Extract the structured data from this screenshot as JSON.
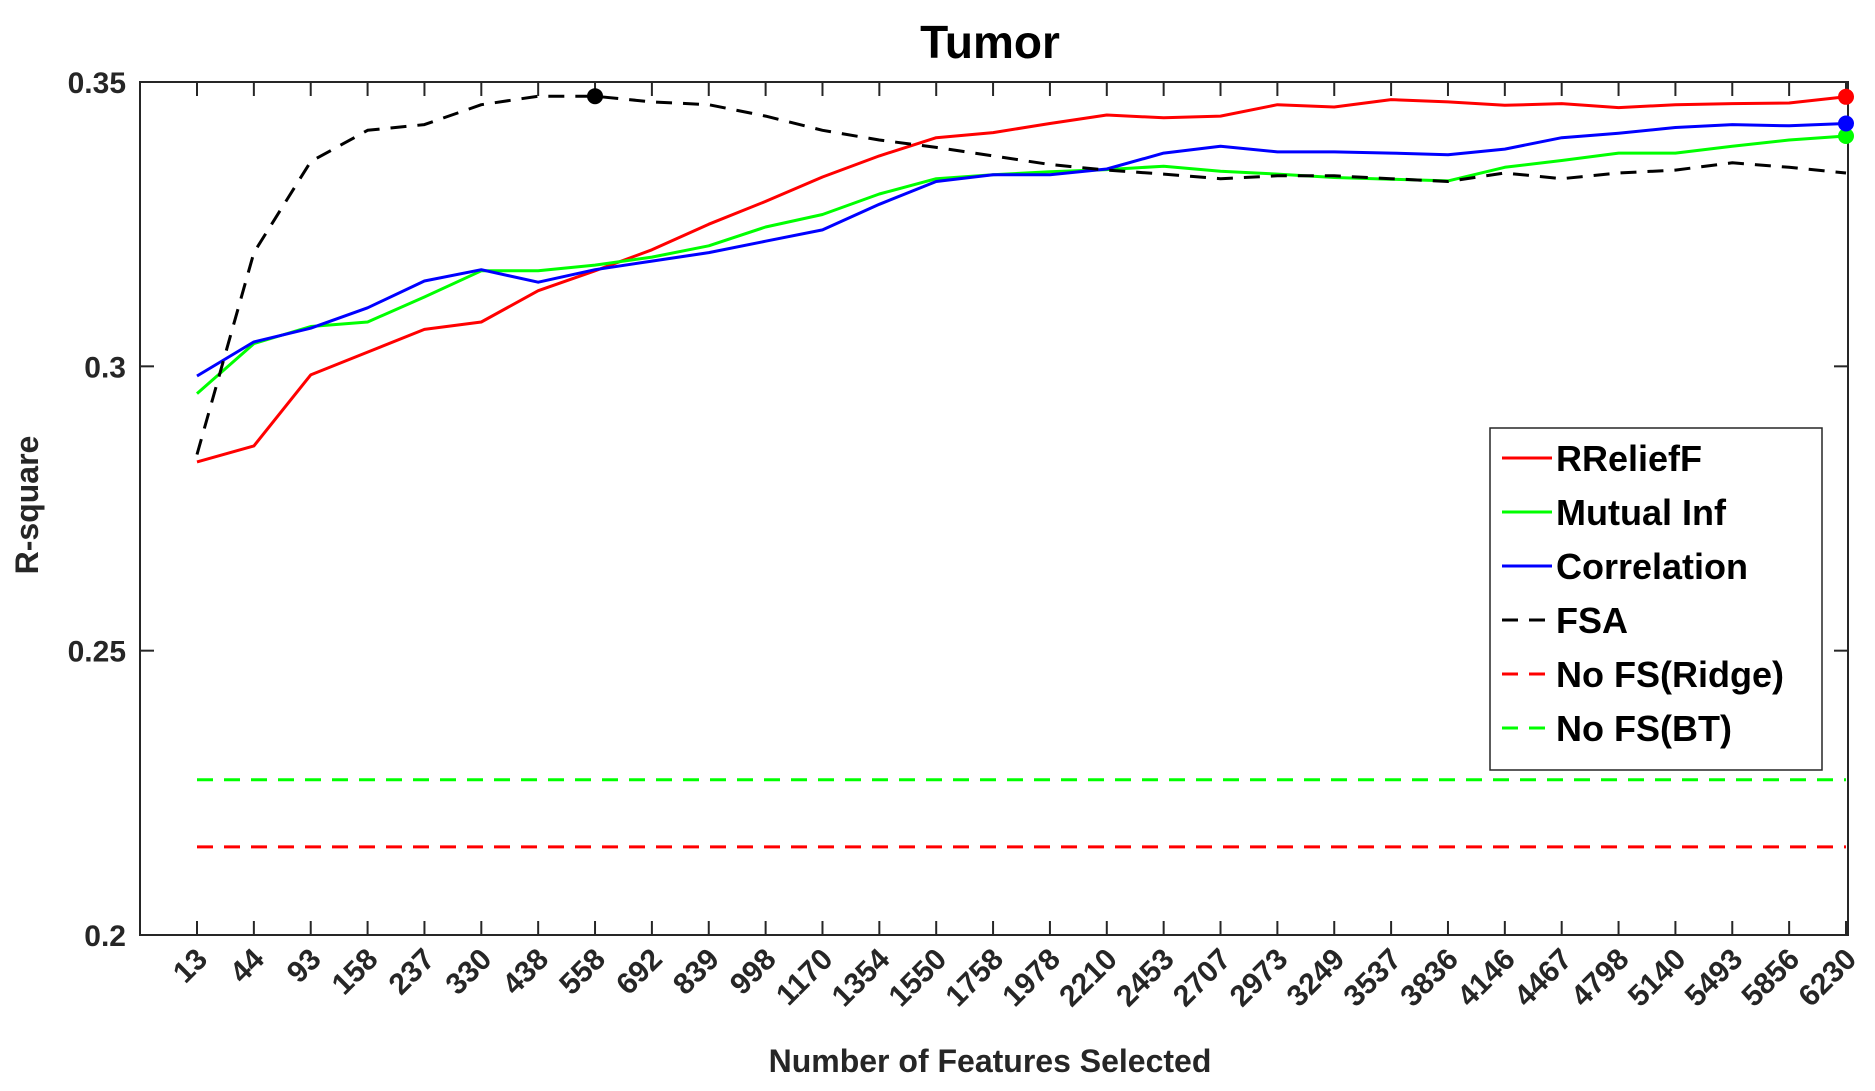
{
  "chart_data": {
    "type": "line",
    "title": "Tumor",
    "xlabel": "Number of Features Selected",
    "ylabel": "R-square",
    "categories": [
      "13",
      "44",
      "93",
      "158",
      "237",
      "330",
      "438",
      "558",
      "692",
      "839",
      "998",
      "1170",
      "1354",
      "1550",
      "1758",
      "1978",
      "2210",
      "2453",
      "2707",
      "2973",
      "3249",
      "3537",
      "3836",
      "4146",
      "4467",
      "4798",
      "5140",
      "5493",
      "5856",
      "6230"
    ],
    "ylim": [
      0.2,
      0.35
    ],
    "yticks": [
      0.2,
      0.25,
      0.3,
      0.35
    ],
    "ytick_labels": [
      "0.2",
      "0.25",
      "0.3",
      "0.35"
    ],
    "grid": false,
    "legend_position": "right",
    "series": [
      {
        "name": "RReliefF",
        "color": "#ff0000",
        "dash": "solid",
        "values": [
          0.2832,
          0.286,
          0.2985,
          0.3025,
          0.3065,
          0.3078,
          0.3133,
          0.3168,
          0.3205,
          0.325,
          0.329,
          0.3333,
          0.337,
          0.3402,
          0.3411,
          0.3427,
          0.3442,
          0.3437,
          0.344,
          0.346,
          0.3456,
          0.3469,
          0.3465,
          0.3459,
          0.3462,
          0.3455,
          0.346,
          0.3462,
          0.3463,
          0.3474
        ],
        "marker": {
          "index": 29,
          "value": 0.3474
        }
      },
      {
        "name": "Mutual Inf",
        "color": "#00ff00",
        "dash": "solid",
        "values": [
          0.2952,
          0.304,
          0.307,
          0.3078,
          0.3122,
          0.3168,
          0.3168,
          0.3178,
          0.3192,
          0.3212,
          0.3245,
          0.3267,
          0.3303,
          0.333,
          0.3337,
          0.3342,
          0.3346,
          0.3352,
          0.3343,
          0.3338,
          0.3332,
          0.3329,
          0.3326,
          0.335,
          0.3362,
          0.3375,
          0.3375,
          0.3387,
          0.3398,
          0.3405
        ],
        "marker": {
          "index": 29,
          "value": 0.3405
        }
      },
      {
        "name": "Correlation",
        "color": "#0000ff",
        "dash": "solid",
        "values": [
          0.2983,
          0.3043,
          0.3067,
          0.3103,
          0.315,
          0.317,
          0.3148,
          0.317,
          0.3185,
          0.32,
          0.322,
          0.324,
          0.3285,
          0.3325,
          0.3337,
          0.3337,
          0.3347,
          0.3375,
          0.3387,
          0.3377,
          0.3377,
          0.3375,
          0.3372,
          0.3382,
          0.3402,
          0.341,
          0.342,
          0.3425,
          0.3423,
          0.3427
        ],
        "marker": {
          "index": 29,
          "value": 0.3427
        }
      },
      {
        "name": "FSA",
        "color": "#000000",
        "dash": "dashed",
        "values": [
          0.2845,
          0.32,
          0.336,
          0.3415,
          0.3425,
          0.346,
          0.3475,
          0.3475,
          0.3465,
          0.346,
          0.344,
          0.3415,
          0.3398,
          0.3385,
          0.337,
          0.3355,
          0.3345,
          0.3338,
          0.333,
          0.3335,
          0.3335,
          0.333,
          0.3325,
          0.334,
          0.333,
          0.334,
          0.3345,
          0.3358,
          0.335,
          0.334
        ],
        "marker": {
          "index": 7,
          "value": 0.3475
        }
      },
      {
        "name": "No FS(Ridge)",
        "color": "#ff0000",
        "dash": "dashed",
        "constant": 0.2155
      },
      {
        "name": "No FS(BT)",
        "color": "#00ff00",
        "dash": "dashed",
        "constant": 0.2273
      }
    ]
  }
}
